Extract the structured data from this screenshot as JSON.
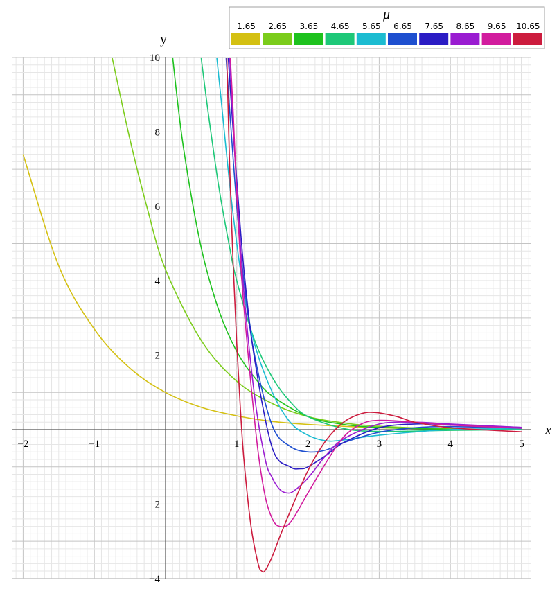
{
  "chart_data": {
    "type": "line",
    "title": "",
    "xlabel": "x",
    "ylabel": "y",
    "xlim": [
      -2,
      5
    ],
    "ylim": [
      -4,
      10
    ],
    "grid": true,
    "x_ticks": [
      -2,
      -1,
      1,
      2,
      3,
      4,
      5
    ],
    "y_ticks": [
      -4,
      -2,
      2,
      4,
      6,
      8,
      10
    ],
    "x_tick_labels": [
      "−2",
      "−1",
      "1",
      "2",
      "3",
      "4",
      "5"
    ],
    "y_tick_labels": [
      "−4",
      "−2",
      "2",
      "4",
      "6",
      "8",
      "10"
    ],
    "legend": {
      "title": "μ",
      "placement": "top-right"
    },
    "series": [
      {
        "name": "1.65",
        "color": "#d4c012",
        "x": [
          -2,
          -1.5,
          -1,
          -0.5,
          0,
          0.5,
          1,
          1.5,
          2,
          3,
          4,
          5
        ],
        "y": [
          7.4,
          4.4,
          2.7,
          1.65,
          1.0,
          0.6,
          0.37,
          0.22,
          0.14,
          0.05,
          0.02,
          0.005
        ]
      },
      {
        "name": "2.65",
        "color": "#7bcc1b",
        "x": [
          -0.75,
          -0.5,
          -0.25,
          0,
          0.5,
          1,
          1.5,
          2,
          2.5,
          3,
          4,
          5
        ],
        "y": [
          10,
          7.8,
          5.9,
          4.3,
          2.4,
          1.3,
          0.7,
          0.35,
          0.18,
          0.09,
          0.02,
          0.005
        ]
      },
      {
        "name": "3.65",
        "color": "#1ec21e",
        "x": [
          0.1,
          0.25,
          0.5,
          0.75,
          1,
          1.25,
          1.5,
          2,
          2.5,
          3,
          4,
          5
        ],
        "y": [
          10,
          7.6,
          4.9,
          3.2,
          2.1,
          1.4,
          0.9,
          0.35,
          0.14,
          0.06,
          0.01,
          0.0
        ]
      },
      {
        "name": "4.65",
        "color": "#1ec878",
        "x": [
          0.5,
          0.6,
          0.75,
          0.9,
          1,
          1.25,
          1.5,
          1.75,
          2,
          2.5,
          3,
          4,
          5
        ],
        "y": [
          10,
          8.5,
          6.5,
          4.9,
          4.0,
          2.4,
          1.4,
          0.75,
          0.35,
          0.03,
          -0.05,
          -0.02,
          0.0
        ]
      },
      {
        "name": "5.65",
        "color": "#1cbcd1",
        "x": [
          0.72,
          0.8,
          0.9,
          1,
          1.1,
          1.25,
          1.5,
          1.75,
          2,
          2.25,
          2.5,
          3,
          4,
          5
        ],
        "y": [
          10,
          8.5,
          6.6,
          5.0,
          3.7,
          2.3,
          1.0,
          0.2,
          -0.15,
          -0.3,
          -0.28,
          -0.15,
          0.0,
          0.03
        ]
      },
      {
        "name": "6.65",
        "color": "#1e4fcf",
        "x": [
          0.85,
          0.9,
          1,
          1.1,
          1.25,
          1.5,
          1.75,
          2,
          2.25,
          2.5,
          3,
          3.5,
          4,
          5
        ],
        "y": [
          10,
          8.6,
          6.0,
          4.0,
          2.0,
          0.1,
          -0.45,
          -0.6,
          -0.55,
          -0.35,
          -0.07,
          0.05,
          0.08,
          0.04
        ]
      },
      {
        "name": "7.65",
        "color": "#2b1cc4",
        "x": [
          0.88,
          0.95,
          1,
          1.1,
          1.25,
          1.5,
          1.75,
          1.9,
          2,
          2.25,
          2.5,
          3,
          3.5,
          4,
          5
        ],
        "y": [
          10,
          8.0,
          6.7,
          4.3,
          1.9,
          -0.5,
          -1.0,
          -1.05,
          -1.0,
          -0.7,
          -0.35,
          0.05,
          0.15,
          0.13,
          0.06
        ]
      },
      {
        "name": "8.65",
        "color": "#9a1cd1",
        "x": [
          0.9,
          0.95,
          1,
          1.1,
          1.25,
          1.4,
          1.5,
          1.6,
          1.7,
          1.8,
          2,
          2.25,
          2.5,
          3,
          3.5,
          4,
          5
        ],
        "y": [
          10,
          8.2,
          6.5,
          3.7,
          0.9,
          -0.8,
          -1.3,
          -1.6,
          -1.7,
          -1.65,
          -1.3,
          -0.7,
          -0.25,
          0.15,
          0.2,
          0.15,
          0.06
        ]
      },
      {
        "name": "9.65",
        "color": "#d21c9e",
        "x": [
          0.91,
          0.95,
          1,
          1.05,
          1.1,
          1.2,
          1.3,
          1.4,
          1.5,
          1.6,
          1.75,
          2,
          2.25,
          2.5,
          2.75,
          3,
          3.5,
          4,
          5
        ],
        "y": [
          10,
          8.5,
          6.3,
          4.6,
          3.3,
          1.2,
          -0.6,
          -1.8,
          -2.4,
          -2.6,
          -2.5,
          -1.7,
          -0.9,
          -0.2,
          0.15,
          0.25,
          0.2,
          0.12,
          0.04
        ]
      },
      {
        "name": "10.65",
        "color": "#cc1c3e",
        "x": [
          0.86,
          0.88,
          0.9,
          0.95,
          1,
          1.05,
          1.1,
          1.2,
          1.3,
          1.35,
          1.4,
          1.5,
          1.6,
          1.75,
          2,
          2.25,
          2.5,
          2.75,
          2.95,
          3.25,
          3.5,
          4,
          5
        ],
        "y": [
          10,
          8.5,
          7.1,
          4.4,
          2.3,
          0.6,
          -0.8,
          -2.6,
          -3.6,
          -3.8,
          -3.78,
          -3.4,
          -2.9,
          -2.2,
          -1.1,
          -0.3,
          0.2,
          0.43,
          0.46,
          0.35,
          0.2,
          0.05,
          -0.06
        ]
      }
    ]
  }
}
